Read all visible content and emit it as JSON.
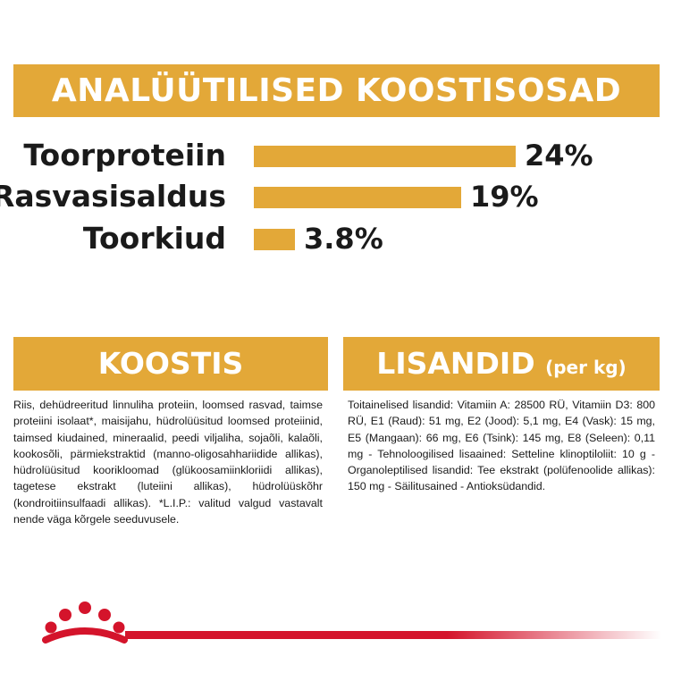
{
  "header": {
    "title": "ANALÜÜTILISED KOOSTISOSAD"
  },
  "analytics": [
    {
      "label": "Toorproteiin",
      "value": "24%",
      "percent": 24
    },
    {
      "label": "Rasvasisaldus",
      "value": "19%",
      "percent": 19
    },
    {
      "label": "Toorkiud",
      "value": "3.8%",
      "percent": 3.8
    }
  ],
  "koostis": {
    "title": "KOOSTIS",
    "text": "Riis, dehüdreeritud linnuliha proteiin, loomsed rasvad, taimse proteiini isolaat*, maisijahu, hüdrolüüsitud loomsed proteiinid, taimsed kiudained, mineraalid, peedi viljaliha, sojaõli, kalaõli, kookosõli, pärmiekstraktid (manno-oligosahhariidide allikas), hüdrolüüsitud koorikloomad (glükoosamiinkloriidi allikas), tagetese ekstrakt (luteiini allikas), hüdrolüüskõhr (kondroitiinsulfaadi allikas). *L.I.P.: valitud valgud vastavalt nende väga kõrgele seeduvusele."
  },
  "lisandid": {
    "title": "LISANDID",
    "subtitle": "(per kg)",
    "text": "Toitainelised lisandid: Vitamiin A: 28500 RÜ, Vitamiin D3: 800 RÜ, E1 (Raud): 51 mg, E2 (Jood): 5,1 mg, E4 (Vask): 15 mg, E5 (Mangaan): 66 mg, E6 (Tsink): 145 mg, E8 (Seleen): 0,11 mg - Tehnoloogilised lisaained: Setteline klinoptiloliit: 10 g - Organoleptilised lisandid: Tee ekstrakt (polüfenoolide allikas): 150 mg - Säilitusained - Antioksüdandid."
  },
  "colors": {
    "accent": "#e3a838",
    "brand_red": "#d4142b",
    "text": "#1a1a1a"
  },
  "icons": {
    "logo": "royal-canin-crown-icon"
  }
}
